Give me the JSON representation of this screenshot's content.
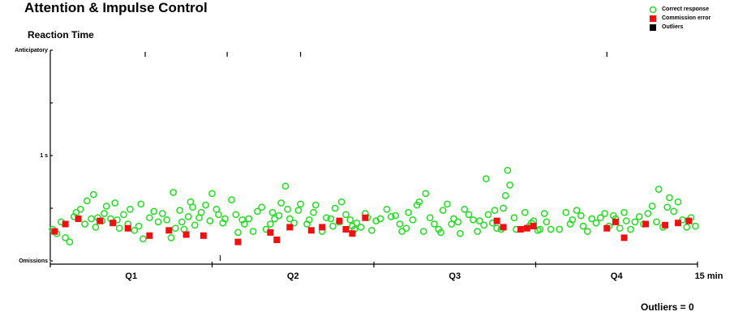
{
  "title": "Attention & Impulse Control",
  "subtitle": "Reaction Time",
  "legend": [
    {
      "label": "Correct response",
      "marker": "circle",
      "color": "#22dd22"
    },
    {
      "label": "Commission error",
      "marker": "square",
      "color": "#ee1111"
    },
    {
      "label": "Outliers",
      "marker": "square",
      "color": "#000000"
    }
  ],
  "footer": "Outliers = 0",
  "colors": {
    "correct": "#22dd22",
    "commission": "#ee1111",
    "outlier": "#000000"
  },
  "chart_data": {
    "type": "scatter",
    "title": "Reaction Time",
    "y_tick_labels": [
      {
        "value": 2.0,
        "label": "Anticipatory"
      },
      {
        "value": 1.0,
        "label": "1 s"
      },
      {
        "value": 0.0,
        "label": "Omissions"
      }
    ],
    "x_tick_labels": [
      "Q1",
      "Q2",
      "Q3",
      "Q4",
      "15 min"
    ],
    "quarter_boundaries_min": [
      3.75,
      7.5,
      11.25
    ],
    "top_marks_min": [
      2.2,
      4.1,
      5.8,
      12.9
    ],
    "xlim_min": [
      0,
      15
    ],
    "ylim_s": [
      0,
      2.0
    ],
    "correct_points": [
      [
        0.05,
        0.3
      ],
      [
        0.15,
        0.26
      ],
      [
        0.25,
        0.37
      ],
      [
        0.35,
        0.22
      ],
      [
        0.45,
        0.18
      ],
      [
        0.55,
        0.42
      ],
      [
        0.6,
        0.46
      ],
      [
        0.7,
        0.49
      ],
      [
        0.8,
        0.35
      ],
      [
        0.85,
        0.57
      ],
      [
        0.95,
        0.4
      ],
      [
        1.0,
        0.63
      ],
      [
        1.05,
        0.32
      ],
      [
        1.1,
        0.41
      ],
      [
        1.2,
        0.38
      ],
      [
        1.25,
        0.45
      ],
      [
        1.3,
        0.52
      ],
      [
        1.4,
        0.4
      ],
      [
        1.5,
        0.55
      ],
      [
        1.55,
        0.39
      ],
      [
        1.6,
        0.31
      ],
      [
        1.7,
        0.44
      ],
      [
        1.8,
        0.35
      ],
      [
        1.85,
        0.49
      ],
      [
        1.95,
        0.29
      ],
      [
        2.05,
        0.33
      ],
      [
        2.1,
        0.54
      ],
      [
        2.15,
        0.21
      ],
      [
        2.3,
        0.41
      ],
      [
        2.4,
        0.47
      ],
      [
        2.5,
        0.37
      ],
      [
        2.6,
        0.45
      ],
      [
        2.7,
        0.39
      ],
      [
        2.8,
        0.22
      ],
      [
        2.85,
        0.65
      ],
      [
        2.9,
        0.31
      ],
      [
        3.0,
        0.48
      ],
      [
        3.05,
        0.37
      ],
      [
        3.1,
        0.3
      ],
      [
        3.2,
        0.42
      ],
      [
        3.25,
        0.56
      ],
      [
        3.3,
        0.51
      ],
      [
        3.35,
        0.34
      ],
      [
        3.45,
        0.41
      ],
      [
        3.5,
        0.46
      ],
      [
        3.6,
        0.53
      ],
      [
        3.7,
        0.38
      ],
      [
        3.75,
        0.64
      ],
      [
        3.85,
        0.49
      ],
      [
        3.9,
        0.44
      ],
      [
        4.0,
        0.36
      ],
      [
        4.05,
        0.4
      ],
      [
        4.2,
        0.58
      ],
      [
        4.3,
        0.44
      ],
      [
        4.35,
        0.27
      ],
      [
        4.45,
        0.39
      ],
      [
        4.5,
        0.35
      ],
      [
        4.6,
        0.4
      ],
      [
        4.7,
        0.28
      ],
      [
        4.8,
        0.47
      ],
      [
        4.9,
        0.51
      ],
      [
        5.0,
        0.3
      ],
      [
        5.1,
        0.35
      ],
      [
        5.15,
        0.46
      ],
      [
        5.2,
        0.4
      ],
      [
        5.3,
        0.43
      ],
      [
        5.35,
        0.55
      ],
      [
        5.45,
        0.71
      ],
      [
        5.5,
        0.49
      ],
      [
        5.55,
        0.4
      ],
      [
        5.65,
        0.36
      ],
      [
        5.75,
        0.48
      ],
      [
        5.8,
        0.54
      ],
      [
        5.95,
        0.35
      ],
      [
        6.0,
        0.39
      ],
      [
        6.1,
        0.46
      ],
      [
        6.15,
        0.53
      ],
      [
        6.3,
        0.28
      ],
      [
        6.4,
        0.41
      ],
      [
        6.5,
        0.4
      ],
      [
        6.55,
        0.33
      ],
      [
        6.6,
        0.5
      ],
      [
        6.7,
        0.37
      ],
      [
        6.75,
        0.56
      ],
      [
        6.85,
        0.44
      ],
      [
        6.95,
        0.39
      ],
      [
        7.0,
        0.33
      ],
      [
        7.05,
        0.3
      ],
      [
        7.1,
        0.36
      ],
      [
        7.2,
        0.32
      ],
      [
        7.3,
        0.45
      ],
      [
        7.35,
        0.41
      ],
      [
        7.45,
        0.29
      ],
      [
        7.55,
        0.38
      ],
      [
        7.65,
        0.4
      ],
      [
        7.8,
        0.49
      ],
      [
        7.9,
        0.42
      ],
      [
        8.0,
        0.43
      ],
      [
        8.1,
        0.35
      ],
      [
        8.15,
        0.28
      ],
      [
        8.25,
        0.31
      ],
      [
        8.3,
        0.46
      ],
      [
        8.4,
        0.39
      ],
      [
        8.5,
        0.53
      ],
      [
        8.55,
        0.56
      ],
      [
        8.65,
        0.28
      ],
      [
        8.7,
        0.64
      ],
      [
        8.8,
        0.41
      ],
      [
        8.9,
        0.35
      ],
      [
        9.0,
        0.3
      ],
      [
        9.05,
        0.27
      ],
      [
        9.1,
        0.48
      ],
      [
        9.2,
        0.54
      ],
      [
        9.3,
        0.35
      ],
      [
        9.35,
        0.4
      ],
      [
        9.45,
        0.37
      ],
      [
        9.5,
        0.26
      ],
      [
        9.6,
        0.49
      ],
      [
        9.7,
        0.44
      ],
      [
        9.8,
        0.39
      ],
      [
        9.9,
        0.28
      ],
      [
        9.95,
        0.38
      ],
      [
        10.05,
        0.34
      ],
      [
        10.1,
        0.78
      ],
      [
        10.15,
        0.44
      ],
      [
        10.25,
        0.36
      ],
      [
        10.3,
        0.48
      ],
      [
        10.35,
        0.31
      ],
      [
        10.45,
        0.3
      ],
      [
        10.5,
        0.5
      ],
      [
        10.55,
        0.62
      ],
      [
        10.6,
        0.86
      ],
      [
        10.65,
        0.72
      ],
      [
        10.75,
        0.41
      ],
      [
        10.8,
        0.3
      ],
      [
        11.0,
        0.46
      ],
      [
        11.1,
        0.33
      ],
      [
        11.15,
        0.36
      ],
      [
        11.2,
        0.38
      ],
      [
        11.3,
        0.29
      ],
      [
        11.35,
        0.3
      ],
      [
        11.45,
        0.45
      ],
      [
        11.5,
        0.37
      ],
      [
        11.6,
        0.3
      ],
      [
        11.8,
        0.3
      ],
      [
        11.95,
        0.46
      ],
      [
        12.05,
        0.35
      ],
      [
        12.1,
        0.39
      ],
      [
        12.2,
        0.48
      ],
      [
        12.3,
        0.43
      ],
      [
        12.35,
        0.33
      ],
      [
        12.45,
        0.28
      ],
      [
        12.55,
        0.4
      ],
      [
        12.65,
        0.36
      ],
      [
        12.75,
        0.41
      ],
      [
        12.85,
        0.45
      ],
      [
        12.95,
        0.33
      ],
      [
        13.05,
        0.43
      ],
      [
        13.1,
        0.4
      ],
      [
        13.2,
        0.31
      ],
      [
        13.3,
        0.46
      ],
      [
        13.35,
        0.38
      ],
      [
        13.45,
        0.3
      ],
      [
        13.55,
        0.37
      ],
      [
        13.65,
        0.42
      ],
      [
        13.75,
        0.35
      ],
      [
        13.85,
        0.45
      ],
      [
        13.95,
        0.52
      ],
      [
        14.05,
        0.37
      ],
      [
        14.1,
        0.68
      ],
      [
        14.2,
        0.32
      ],
      [
        14.3,
        0.51
      ],
      [
        14.35,
        0.6
      ],
      [
        14.45,
        0.47
      ],
      [
        14.55,
        0.56
      ],
      [
        14.65,
        0.39
      ],
      [
        14.75,
        0.32
      ],
      [
        14.85,
        0.41
      ],
      [
        14.95,
        0.33
      ]
    ],
    "commission_points": [
      [
        0.1,
        0.28
      ],
      [
        0.35,
        0.35
      ],
      [
        0.65,
        0.4
      ],
      [
        1.15,
        0.38
      ],
      [
        1.45,
        0.36
      ],
      [
        1.8,
        0.31
      ],
      [
        2.3,
        0.24
      ],
      [
        2.75,
        0.29
      ],
      [
        3.15,
        0.25
      ],
      [
        3.55,
        0.24
      ],
      [
        4.35,
        0.18
      ],
      [
        5.1,
        0.27
      ],
      [
        5.25,
        0.2
      ],
      [
        5.55,
        0.32
      ],
      [
        6.05,
        0.29
      ],
      [
        6.3,
        0.32
      ],
      [
        6.7,
        0.38
      ],
      [
        6.85,
        0.3
      ],
      [
        7.0,
        0.26
      ],
      [
        7.3,
        0.41
      ],
      [
        10.35,
        0.38
      ],
      [
        10.5,
        0.32
      ],
      [
        10.9,
        0.3
      ],
      [
        11.05,
        0.31
      ],
      [
        11.2,
        0.33
      ],
      [
        12.9,
        0.31
      ],
      [
        13.1,
        0.37
      ],
      [
        13.3,
        0.22
      ],
      [
        13.8,
        0.35
      ],
      [
        14.25,
        0.34
      ],
      [
        14.55,
        0.36
      ],
      [
        14.8,
        0.38
      ]
    ],
    "outlier_points": []
  }
}
